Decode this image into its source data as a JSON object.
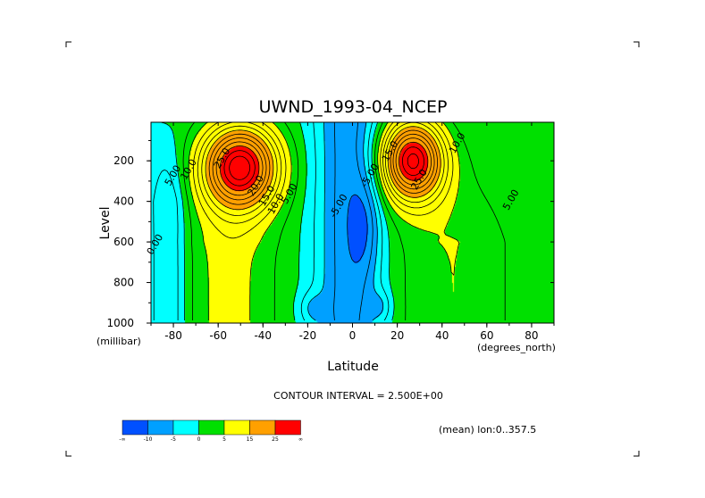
{
  "chart_data": {
    "type": "contour",
    "title": "UWND_1993-04_NCEP",
    "xlabel": "Latitude",
    "ylabel": "Level",
    "x_units": "(degrees_north)",
    "y_units": "(millibar)",
    "xlim": [
      -90,
      90
    ],
    "ylim": [
      1000,
      10
    ],
    "x_ticks": [
      {
        "value": -80,
        "label": "-80"
      },
      {
        "value": -60,
        "label": "-60"
      },
      {
        "value": -40,
        "label": "-40"
      },
      {
        "value": -20,
        "label": "-20"
      },
      {
        "value": 0,
        "label": "0"
      },
      {
        "value": 20,
        "label": "20"
      },
      {
        "value": 40,
        "label": "40"
      },
      {
        "value": 60,
        "label": "60"
      },
      {
        "value": 80,
        "label": "80"
      }
    ],
    "y_ticks": [
      {
        "value": 200,
        "label": "200"
      },
      {
        "value": 400,
        "label": "400"
      },
      {
        "value": 600,
        "label": "600"
      },
      {
        "value": 800,
        "label": "800"
      },
      {
        "value": 1000,
        "label": "1000"
      }
    ],
    "contour_interval_text": "CONTOUR INTERVAL = 2.500E+00",
    "note": "(mean) lon:0..357.5",
    "levels": [
      -10,
      -5,
      0,
      5,
      15,
      25
    ],
    "colorbar": {
      "colors": [
        "#0050ff",
        "#00a0ff",
        "#00ffff",
        "#00e000",
        "#ffff00",
        "#ffa000",
        "#ff0000"
      ],
      "labels": [
        "-10",
        "-5",
        "0",
        "5",
        "15",
        "25"
      ],
      "end_labels": [
        "-∞",
        "∞"
      ]
    },
    "jets": [
      {
        "lat": -50,
        "level": 230,
        "peak": 30,
        "sx": 17,
        "sy": 210
      },
      {
        "lat": 27,
        "level": 200,
        "peak": 30,
        "sx": 14,
        "sy": 200
      }
    ],
    "contour_labels": [
      {
        "lat": -57,
        "level": 195,
        "text": "25.0"
      },
      {
        "lat": -42,
        "level": 330,
        "text": "20.0"
      },
      {
        "lat": -37,
        "level": 380,
        "text": "15.0"
      },
      {
        "lat": -33,
        "level": 420,
        "text": "10.0"
      },
      {
        "lat": -27,
        "level": 370,
        "text": "5.00"
      },
      {
        "lat": -79,
        "level": 280,
        "text": "5.00"
      },
      {
        "lat": -72,
        "level": 250,
        "text": "10.0"
      },
      {
        "lat": -5,
        "level": 430,
        "text": "-5.00"
      },
      {
        "lat": 9,
        "level": 280,
        "text": "-5.00"
      },
      {
        "lat": 18,
        "level": 160,
        "text": "15.0"
      },
      {
        "lat": 31,
        "level": 300,
        "text": "25.0"
      },
      {
        "lat": 48,
        "level": 120,
        "text": "10.0"
      },
      {
        "lat": 72,
        "level": 400,
        "text": "5.00"
      },
      {
        "lat": -87,
        "level": 620,
        "text": "0.00"
      }
    ]
  }
}
